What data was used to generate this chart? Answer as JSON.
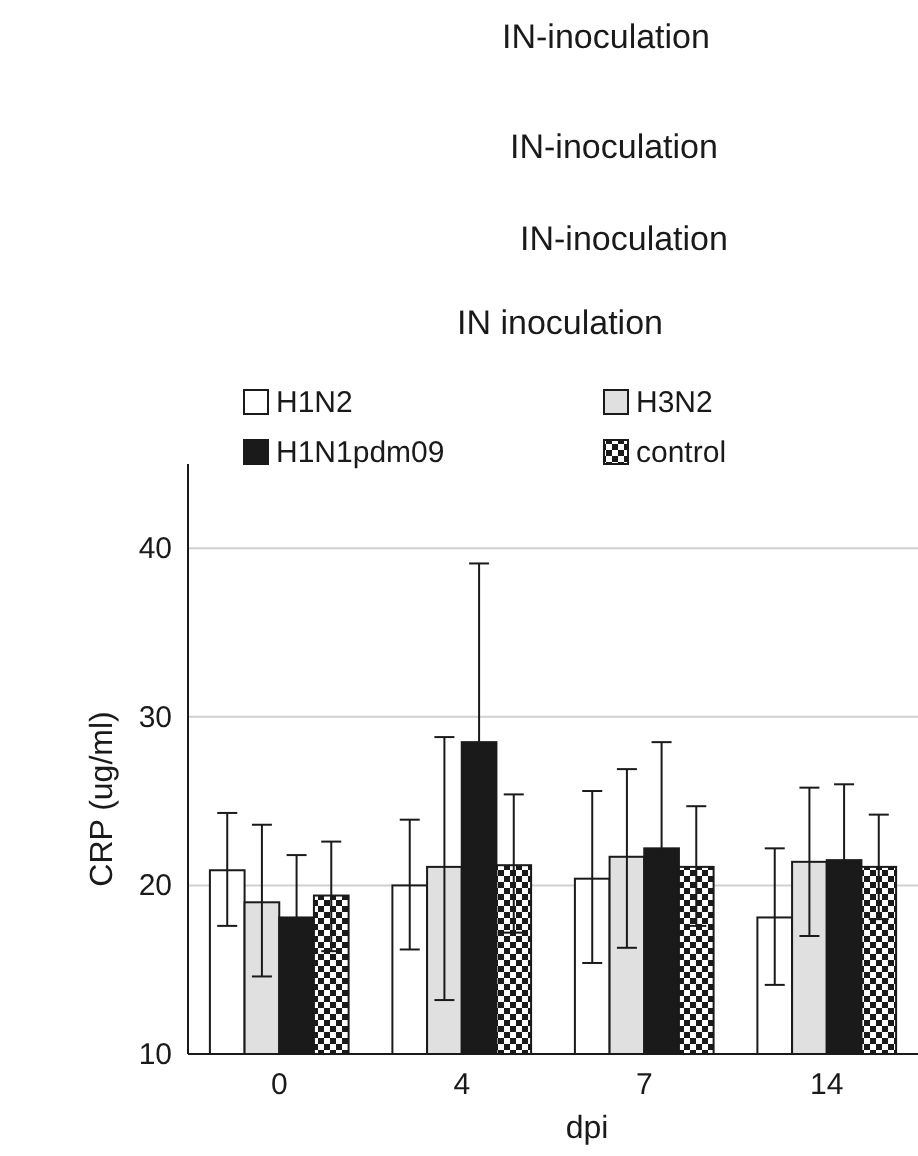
{
  "chart_data": {
    "type": "bar",
    "title": "IN-inoculation",
    "annotations": [
      "IN-inoculation",
      "IN-inoculation",
      "IN inoculation"
    ],
    "xlabel": "dpi",
    "ylabel": "CRP (ug/ml)",
    "categories": [
      "0",
      "4",
      "7",
      "14"
    ],
    "series": [
      {
        "name": "H1N2",
        "color": "#ffffff",
        "values": [
          20.9,
          20.0,
          20.4,
          18.1
        ],
        "errors": [
          [
            17.6,
            24.3
          ],
          [
            16.2,
            23.9
          ],
          [
            15.4,
            25.6
          ],
          [
            14.1,
            22.2
          ]
        ]
      },
      {
        "name": "H3N2",
        "color": "#e0e0e0",
        "values": [
          19.0,
          21.1,
          21.7,
          21.4
        ],
        "errors": [
          [
            14.6,
            23.6
          ],
          [
            13.2,
            28.8
          ],
          [
            16.3,
            26.9
          ],
          [
            17.0,
            25.8
          ]
        ]
      },
      {
        "name": "H1N1pdm09",
        "color": "#1a1a1a",
        "values": [
          18.1,
          28.5,
          22.2,
          21.5
        ],
        "errors": [
          3.7,
          10.6,
          6.3,
          4.5
        ]
      },
      {
        "name": "control",
        "color": "#1a1a1a",
        "values": [
          19.4,
          21.2,
          21.1,
          21.1
        ],
        "errors": [
          [
            16.1,
            22.6
          ],
          [
            17.2,
            25.4
          ],
          [
            17.6,
            24.7
          ],
          [
            18.0,
            24.2
          ]
        ]
      }
    ],
    "ylim": [
      10,
      45
    ],
    "yticks": [
      10,
      20,
      30,
      40
    ],
    "grid": "y",
    "legend": "top"
  }
}
